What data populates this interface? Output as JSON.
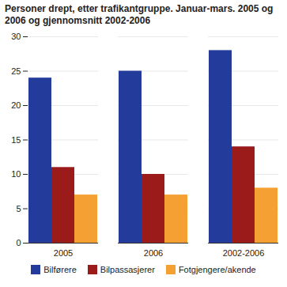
{
  "chart_data": {
    "type": "bar",
    "title": "Personer drept, etter trafikantgruppe. Januar-mars. 2005 og 2006 og gjennomsnitt 2002-2006",
    "categories": [
      "2005",
      "2006",
      "2002-2006"
    ],
    "series": [
      {
        "name": "Bilførere",
        "color": "#233c9b",
        "values": [
          24,
          25,
          28
        ]
      },
      {
        "name": "Bilpassasjerer",
        "color": "#9b1b1b",
        "values": [
          11,
          10,
          14
        ]
      },
      {
        "name": "Fotgjengere/akende",
        "color": "#f5a033",
        "values": [
          7,
          7,
          8
        ]
      }
    ],
    "ylim": [
      0,
      30
    ],
    "yticks": [
      0,
      5,
      10,
      15,
      20,
      25,
      30
    ],
    "grid": true,
    "legend": "bottom"
  }
}
